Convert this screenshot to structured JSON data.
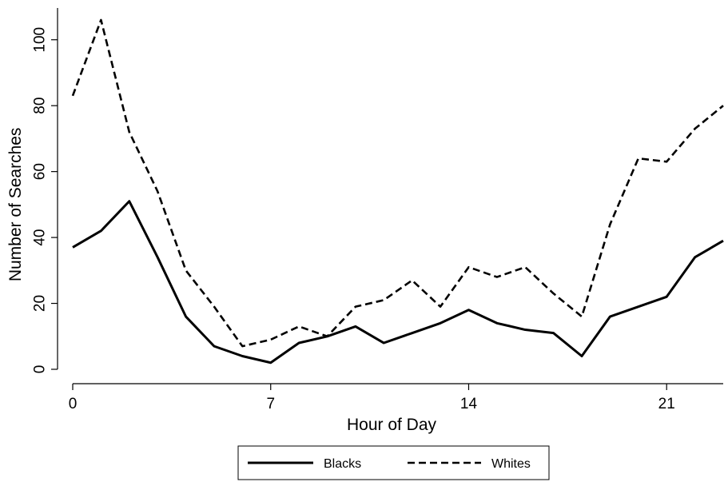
{
  "chart_data": {
    "type": "line",
    "title": "",
    "xlabel": "Hour of Day",
    "ylabel": "Number of Searches",
    "x": [
      0,
      1,
      2,
      3,
      4,
      5,
      6,
      7,
      8,
      9,
      10,
      11,
      12,
      13,
      14,
      15,
      16,
      17,
      18,
      19,
      20,
      21,
      22,
      23
    ],
    "xlim": [
      0,
      23
    ],
    "ylim": [
      0,
      106
    ],
    "xticks": [
      0,
      7,
      14,
      21
    ],
    "yticks": [
      0,
      20,
      40,
      60,
      80,
      100
    ],
    "grid": false,
    "legend_position": "bottom",
    "series": [
      {
        "name": "Blacks",
        "style": "solid",
        "color": "#000000",
        "values": [
          37,
          42,
          51,
          34,
          16,
          7,
          4,
          2,
          8,
          10,
          13,
          8,
          11,
          14,
          18,
          14,
          12,
          11,
          4,
          16,
          19,
          22,
          34,
          39
        ]
      },
      {
        "name": "Whites",
        "style": "dashed",
        "color": "#000000",
        "values": [
          83,
          106,
          72,
          54,
          30,
          19,
          7,
          9,
          13,
          10,
          19,
          21,
          27,
          19,
          31,
          28,
          31,
          23,
          16,
          44,
          64,
          63,
          73,
          80
        ]
      }
    ]
  }
}
